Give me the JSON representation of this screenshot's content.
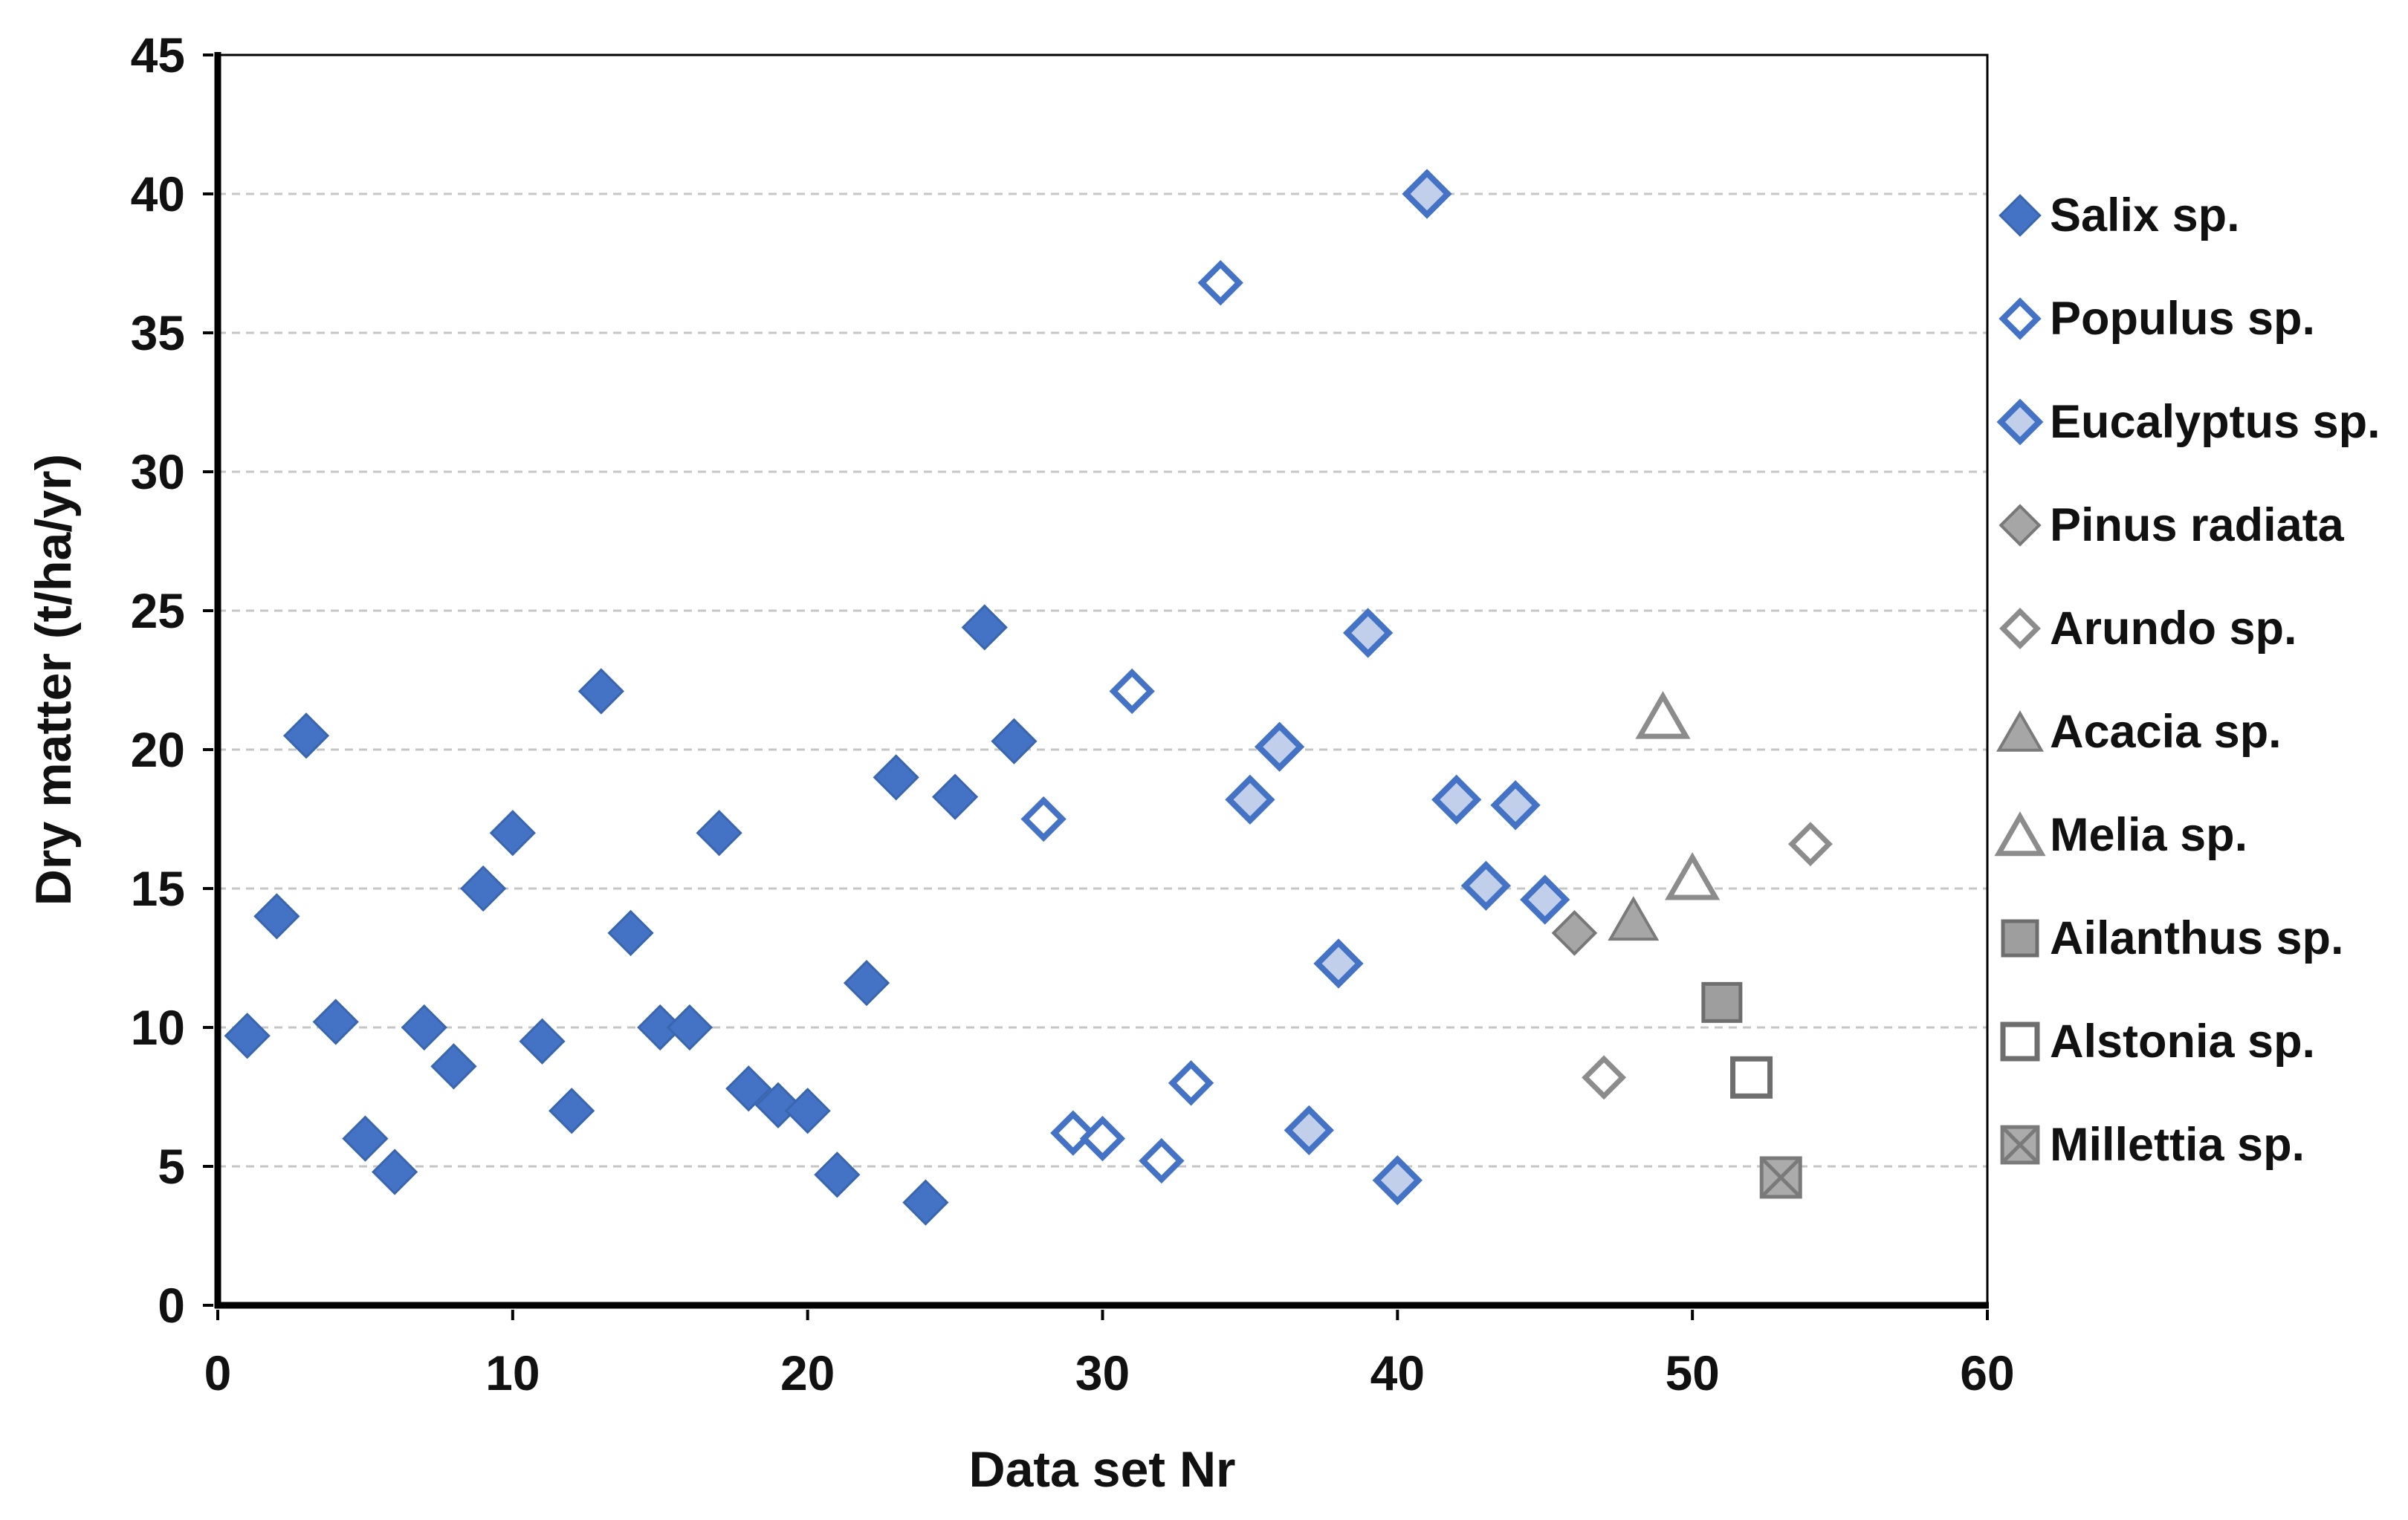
{
  "figure": {
    "background": "#ffffff"
  },
  "chart_data": {
    "type": "scatter",
    "title": "",
    "xlabel": "Data set Nr",
    "ylabel": "Dry matter (t/ha/yr)",
    "xlim": [
      0,
      60
    ],
    "ylim": [
      0,
      45
    ],
    "xticks": [
      0,
      10,
      20,
      30,
      40,
      50,
      60
    ],
    "yticks": [
      0,
      5,
      10,
      15,
      20,
      25,
      30,
      35,
      40,
      45
    ],
    "grid": "horizontal-only",
    "gridline_color": "#c6c6c6",
    "axis_color": "#000000",
    "legend_position": "right",
    "series": [
      {
        "name": "Salix sp.",
        "marker": "diamond",
        "fill": "#4472c4",
        "stroke": "#3a66b0",
        "stroke_width": 3,
        "size": 29,
        "points": [
          [
            1,
            9.7
          ],
          [
            2,
            14.0
          ],
          [
            3,
            20.5
          ],
          [
            4,
            10.2
          ],
          [
            5,
            6.0
          ],
          [
            6,
            4.8
          ],
          [
            7,
            10.0
          ],
          [
            8,
            8.6
          ],
          [
            9,
            15.0
          ],
          [
            10,
            17.0
          ],
          [
            11,
            9.5
          ],
          [
            12,
            7.0
          ],
          [
            13,
            22.1
          ],
          [
            14,
            13.4
          ],
          [
            15,
            10.0
          ],
          [
            16,
            10.0
          ],
          [
            17,
            17.0
          ],
          [
            18,
            7.8
          ],
          [
            19,
            7.2
          ],
          [
            20,
            7.0
          ],
          [
            21,
            4.7
          ],
          [
            22,
            11.6
          ],
          [
            23,
            19.0
          ],
          [
            24,
            3.7
          ],
          [
            25,
            18.3
          ],
          [
            26,
            24.4
          ],
          [
            27,
            20.3
          ]
        ]
      },
      {
        "name": "Populus sp.",
        "marker": "diamond",
        "fill": "#ffffff",
        "stroke": "#4472c4",
        "stroke_width": 8,
        "size": 25,
        "points": [
          [
            28,
            17.5
          ],
          [
            29,
            6.2
          ],
          [
            30,
            6.0
          ],
          [
            31,
            22.1
          ],
          [
            32,
            5.2
          ],
          [
            33,
            8.0
          ],
          [
            34,
            36.8
          ]
        ]
      },
      {
        "name": "Eucalyptus sp.",
        "marker": "diamond",
        "fill": "#c2cfea",
        "stroke": "#4472c4",
        "stroke_width": 8,
        "size": 28,
        "points": [
          [
            35,
            18.2
          ],
          [
            36,
            20.1
          ],
          [
            37,
            6.3
          ],
          [
            38,
            12.3
          ],
          [
            39,
            24.2
          ],
          [
            40,
            4.5
          ],
          [
            41,
            40.0
          ],
          [
            42,
            18.2
          ],
          [
            43,
            15.1
          ],
          [
            44,
            18.0
          ],
          [
            45,
            14.6
          ]
        ]
      },
      {
        "name": "Pinus radiata",
        "marker": "diamond",
        "fill": "#a6a6a6",
        "stroke": "#787878",
        "stroke_width": 4,
        "size": 28,
        "points": [
          [
            46,
            13.4
          ]
        ]
      },
      {
        "name": "Arundo sp.",
        "marker": "diamond",
        "fill": "#ffffff",
        "stroke": "#8c8c8c",
        "stroke_width": 7,
        "size": 25,
        "points": [
          [
            47,
            8.2
          ],
          [
            54,
            16.6
          ]
        ]
      },
      {
        "name": "Acacia sp.",
        "marker": "triangle",
        "fill": "#a6a6a6",
        "stroke": "#7a7a7a",
        "stroke_width": 4,
        "size": 29,
        "points": [
          [
            48,
            13.9
          ]
        ]
      },
      {
        "name": "Melia sp.",
        "marker": "triangle",
        "fill": "#ffffff",
        "stroke": "#8c8c8c",
        "stroke_width": 7,
        "size": 29,
        "points": [
          [
            49,
            21.2
          ],
          [
            50,
            15.4
          ]
        ]
      },
      {
        "name": "Ailanthus sp.",
        "marker": "square",
        "fill": "#9e9e9e",
        "stroke": "#6e6e6e",
        "stroke_width": 5,
        "size": 25,
        "points": [
          [
            51,
            10.9
          ]
        ]
      },
      {
        "name": "Alstonia sp.",
        "marker": "square",
        "fill": "#ffffff",
        "stroke": "#6e6e6e",
        "stroke_width": 7,
        "size": 25,
        "points": [
          [
            52,
            8.2
          ]
        ]
      },
      {
        "name": "Millettia sp.",
        "marker": "square-x",
        "fill": "#ababab",
        "stroke": "#7a7a7a",
        "stroke_width": 5,
        "size": 26,
        "points": [
          [
            53,
            4.6
          ]
        ]
      }
    ]
  }
}
